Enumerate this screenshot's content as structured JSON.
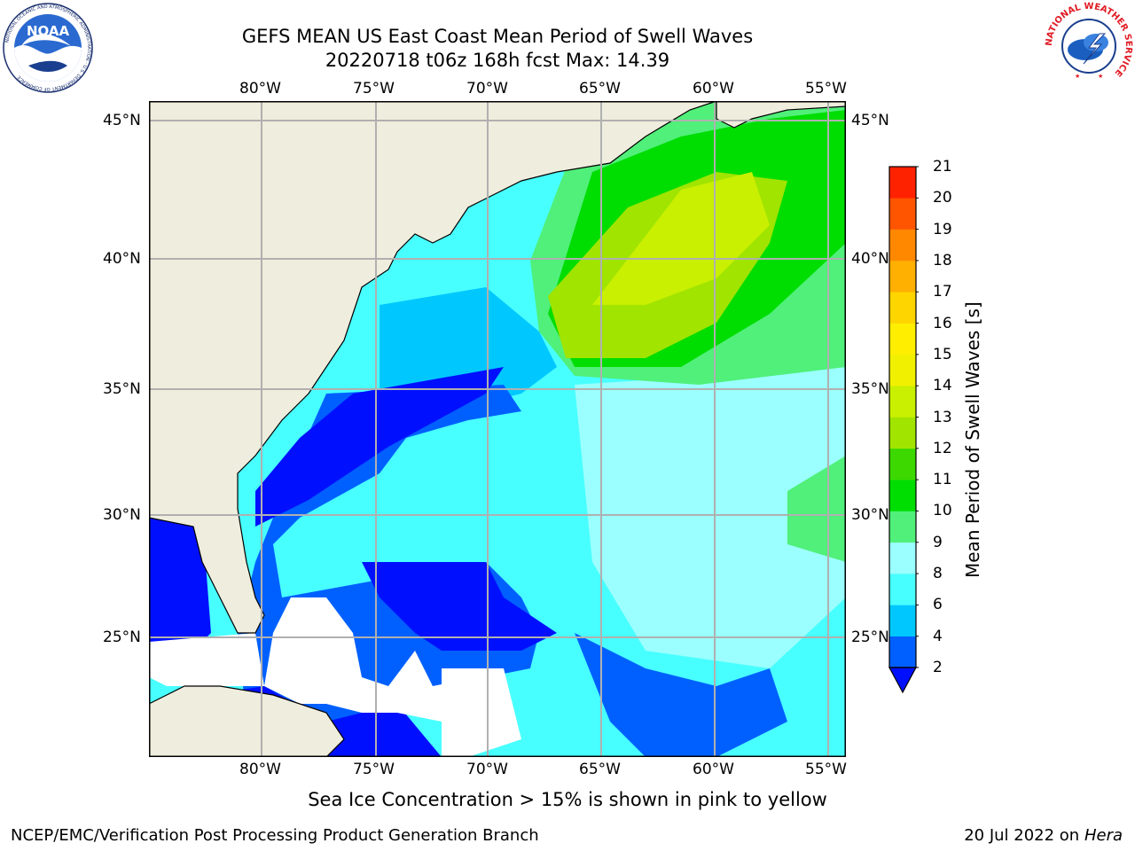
{
  "header": {
    "title_line1": "GEFS MEAN US East Coast Mean Period of Swell Waves",
    "title_line2": "20220718 t06z 168h fcst   Max: 14.39"
  },
  "logos": {
    "left_name": "NOAA",
    "left_ring_text": "NATIONAL OCEANIC AND ATMOSPHERIC ADMINISTRATION · U.S. DEPARTMENT OF COMMERCE",
    "right_ring_text": "NATIONAL WEATHER SERVICE"
  },
  "map": {
    "lon_labels": [
      "80°W",
      "75°W",
      "70°W",
      "65°W",
      "60°W",
      "55°W"
    ],
    "lat_labels": [
      "45°N",
      "40°N",
      "35°N",
      "30°N",
      "25°N"
    ],
    "lon_range": [
      -85,
      -55
    ],
    "lat_range": [
      21,
      46
    ],
    "colors": {
      "land": "#efeddd",
      "gridline": "#b0b0b0",
      "coastline": "#000000",
      "nodata": "#ffffff"
    }
  },
  "colorbar": {
    "title": "Mean Period of Swell Waves [s]",
    "levels": [
      "2",
      "4",
      "6",
      "8",
      "9",
      "10",
      "11",
      "12",
      "13",
      "14",
      "15",
      "16",
      "17",
      "18",
      "19",
      "20",
      "21"
    ],
    "colors": [
      "#0060ff",
      "#00c8ff",
      "#48ffff",
      "#9bffff",
      "#50f07a",
      "#00dd00",
      "#3cd800",
      "#a0e400",
      "#c8f000",
      "#f0f000",
      "#ffee00",
      "#ffd500",
      "#ffb000",
      "#ff8800",
      "#ff5500",
      "#ff2200"
    ],
    "under_color": "#0010ff"
  },
  "footer": {
    "note": "Sea Ice Concentration > 15% is shown in pink to yellow",
    "credit": "NCEP/EMC/Verification Post Processing Product Generation Branch",
    "date": "20 Jul 2022 on ",
    "machine": "Hera"
  }
}
